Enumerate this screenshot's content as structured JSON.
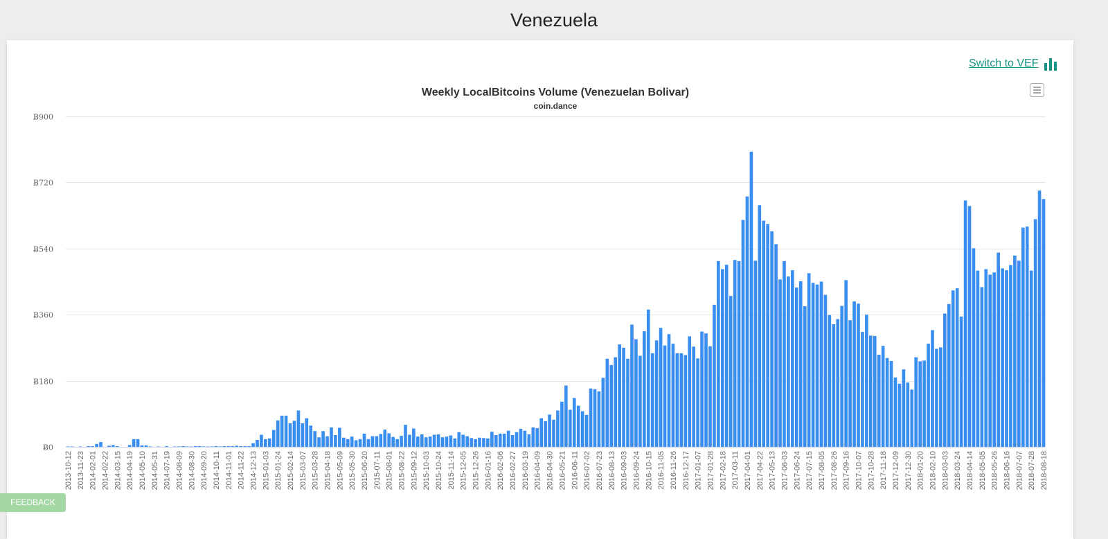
{
  "page": {
    "title": "Venezuela"
  },
  "switch_link": {
    "label": "Switch to VEF",
    "icon": "bar-chart-icon",
    "color": "#1a9487"
  },
  "feedback": {
    "label": "FEEDBACK"
  },
  "chart_menu": {
    "icon": "hamburger-menu-icon"
  },
  "chart_data": {
    "type": "bar",
    "title": "Weekly LocalBitcoins Volume (Venezuelan Bolivar)",
    "subtitle": "coin.dance",
    "xlabel": "",
    "ylabel": "",
    "ylim": [
      0,
      900
    ],
    "y_ticks": [
      0,
      180,
      360,
      540,
      720,
      900
    ],
    "y_tick_labels": [
      "Ƀ0",
      "Ƀ180",
      "Ƀ360",
      "Ƀ540",
      "Ƀ720",
      "Ƀ900"
    ],
    "grid": true,
    "bar_color": "#3a8ef0",
    "x_tick_every": 3,
    "x_tick_labels": [
      "2013-10-12",
      "2013-11-23",
      "2014-02-01",
      "2014-02-22",
      "2014-03-15",
      "2014-04-19",
      "2014-05-10",
      "2014-05-31",
      "2014-07-19",
      "2014-08-09",
      "2014-08-30",
      "2014-09-20",
      "2014-10-11",
      "2014-11-01",
      "2014-11-22",
      "2014-12-13",
      "2015-01-03",
      "2015-01-24",
      "2015-02-14",
      "2015-03-07",
      "2015-03-28",
      "2015-04-18",
      "2015-05-09",
      "2015-05-30",
      "2015-06-20",
      "2015-07-11",
      "2015-08-01",
      "2015-08-22",
      "2015-09-12",
      "2015-10-03",
      "2015-10-24",
      "2015-11-14",
      "2015-12-05",
      "2015-12-26",
      "2016-01-16",
      "2016-02-06",
      "2016-02-27",
      "2016-03-19",
      "2016-04-09",
      "2016-04-30",
      "2016-05-21",
      "2016-06-11",
      "2016-07-02",
      "2016-07-23",
      "2016-08-13",
      "2016-09-03",
      "2016-09-24",
      "2016-10-15",
      "2016-11-05",
      "2016-11-26",
      "2016-12-17",
      "2017-01-07",
      "2017-01-28",
      "2017-02-18",
      "2017-03-11",
      "2017-04-01",
      "2017-04-22",
      "2017-05-13",
      "2017-06-03",
      "2017-06-24",
      "2017-07-15",
      "2017-08-05",
      "2017-08-26",
      "2017-09-16",
      "2017-10-07",
      "2017-10-28",
      "2017-11-18",
      "2017-12-09",
      "2017-12-30",
      "2018-01-20",
      "2018-02-10",
      "2018-03-03",
      "2018-03-24",
      "2018-04-14",
      "2018-05-05",
      "2018-05-26",
      "2018-06-16",
      "2018-07-07",
      "2018-07-28",
      "2018-08-18"
    ],
    "values": [
      1,
      1,
      0,
      1,
      0,
      2,
      2,
      8,
      13,
      0,
      3,
      5,
      2,
      0,
      0,
      5,
      21,
      21,
      4,
      4,
      1,
      0,
      1,
      0,
      2,
      0,
      1,
      1,
      2,
      1,
      1,
      2,
      2,
      1,
      1,
      1,
      2,
      1,
      2,
      2,
      2,
      3,
      2,
      2,
      2,
      10,
      19,
      33,
      21,
      23,
      46,
      72,
      85,
      85,
      64,
      71,
      99,
      64,
      78,
      58,
      43,
      26,
      43,
      29,
      53,
      32,
      52,
      25,
      21,
      28,
      18,
      21,
      36,
      21,
      29,
      29,
      35,
      47,
      37,
      27,
      21,
      30,
      60,
      33,
      50,
      28,
      34,
      26,
      28,
      33,
      34,
      26,
      28,
      31,
      23,
      40,
      33,
      29,
      24,
      21,
      25,
      24,
      23,
      41,
      32,
      36,
      36,
      44,
      32,
      40,
      49,
      44,
      34,
      53,
      51,
      78,
      70,
      88,
      74,
      99,
      123,
      167,
      101,
      133,
      112,
      97,
      87,
      159,
      157,
      151,
      188,
      240,
      223,
      244,
      279,
      270,
      240,
      333,
      293,
      248,
      315,
      374,
      255,
      290,
      324,
      276,
      307,
      281,
      255,
      255,
      250,
      301,
      273,
      241,
      314,
      309,
      274,
      387,
      506,
      484,
      496,
      411,
      509,
      506,
      618,
      682,
      804,
      507,
      658,
      616,
      607,
      587,
      552,
      456,
      506,
      464,
      481,
      434,
      451,
      383,
      473,
      447,
      442,
      450,
      414,
      359,
      334,
      348,
      384,
      454,
      345,
      396,
      390,
      313,
      360,
      303,
      302,
      251,
      275,
      242,
      234,
      189,
      172,
      211,
      175,
      156,
      244,
      233,
      235,
      281,
      318,
      267,
      271,
      363,
      389,
      426,
      432,
      355,
      671,
      656,
      541,
      480,
      435,
      484,
      469,
      475,
      529,
      486,
      481,
      495,
      521,
      507,
      597,
      600,
      480,
      620,
      698,
      675
    ]
  }
}
